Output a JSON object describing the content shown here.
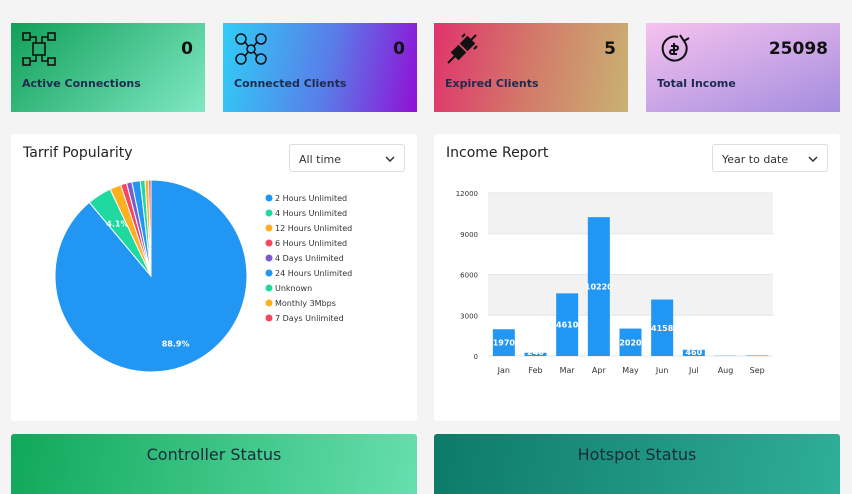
{
  "cards": [
    {
      "value": "0",
      "label": "Active Connections"
    },
    {
      "value": "0",
      "label": "Connected Clients"
    },
    {
      "value": "5",
      "label": "Expired Clients"
    },
    {
      "value": "25098",
      "label": "Total Income"
    }
  ],
  "chart_data": [
    {
      "type": "pie",
      "title": "Tarrif Popularity",
      "filter": "All time",
      "categories": [
        "2 Hours Unlimited",
        "4 Hours Unlimited",
        "12 Hours Unlimited",
        "6 Hours Unlimited",
        "4 Days Unlimited",
        "24 Hours Unlimited",
        "Unknown",
        "Monthly 3Mbps",
        "7 Days Unlimited"
      ],
      "values": [
        88.9,
        4.1,
        1.9,
        1.0,
        0.9,
        1.4,
        0.8,
        0.6,
        0.4
      ],
      "value_labels": [
        "88.9%",
        "4.1%",
        null,
        null,
        null,
        null,
        null,
        null,
        null
      ],
      "colors": [
        "#2196f3",
        "#20d9a0",
        "#ffb020",
        "#f5475f",
        "#7a5ccf",
        "#2196f3",
        "#20d9a0",
        "#ffb020",
        "#f5475f"
      ]
    },
    {
      "type": "bar",
      "title": "Income Report",
      "filter": "Year to date",
      "categories": [
        "Jan",
        "Feb",
        "Mar",
        "Apr",
        "May",
        "Jun",
        "Jul",
        "Aug",
        "Sep"
      ],
      "values": [
        1970,
        240,
        4610,
        10220,
        2020,
        4158,
        460,
        20,
        40
      ],
      "color": "#2196f3",
      "ylim": [
        0,
        12000
      ],
      "yticks": [
        0,
        3000,
        6000,
        9000,
        12000
      ],
      "grid": true
    }
  ],
  "bottom": [
    "Controller Status",
    "Hotspot Status"
  ]
}
